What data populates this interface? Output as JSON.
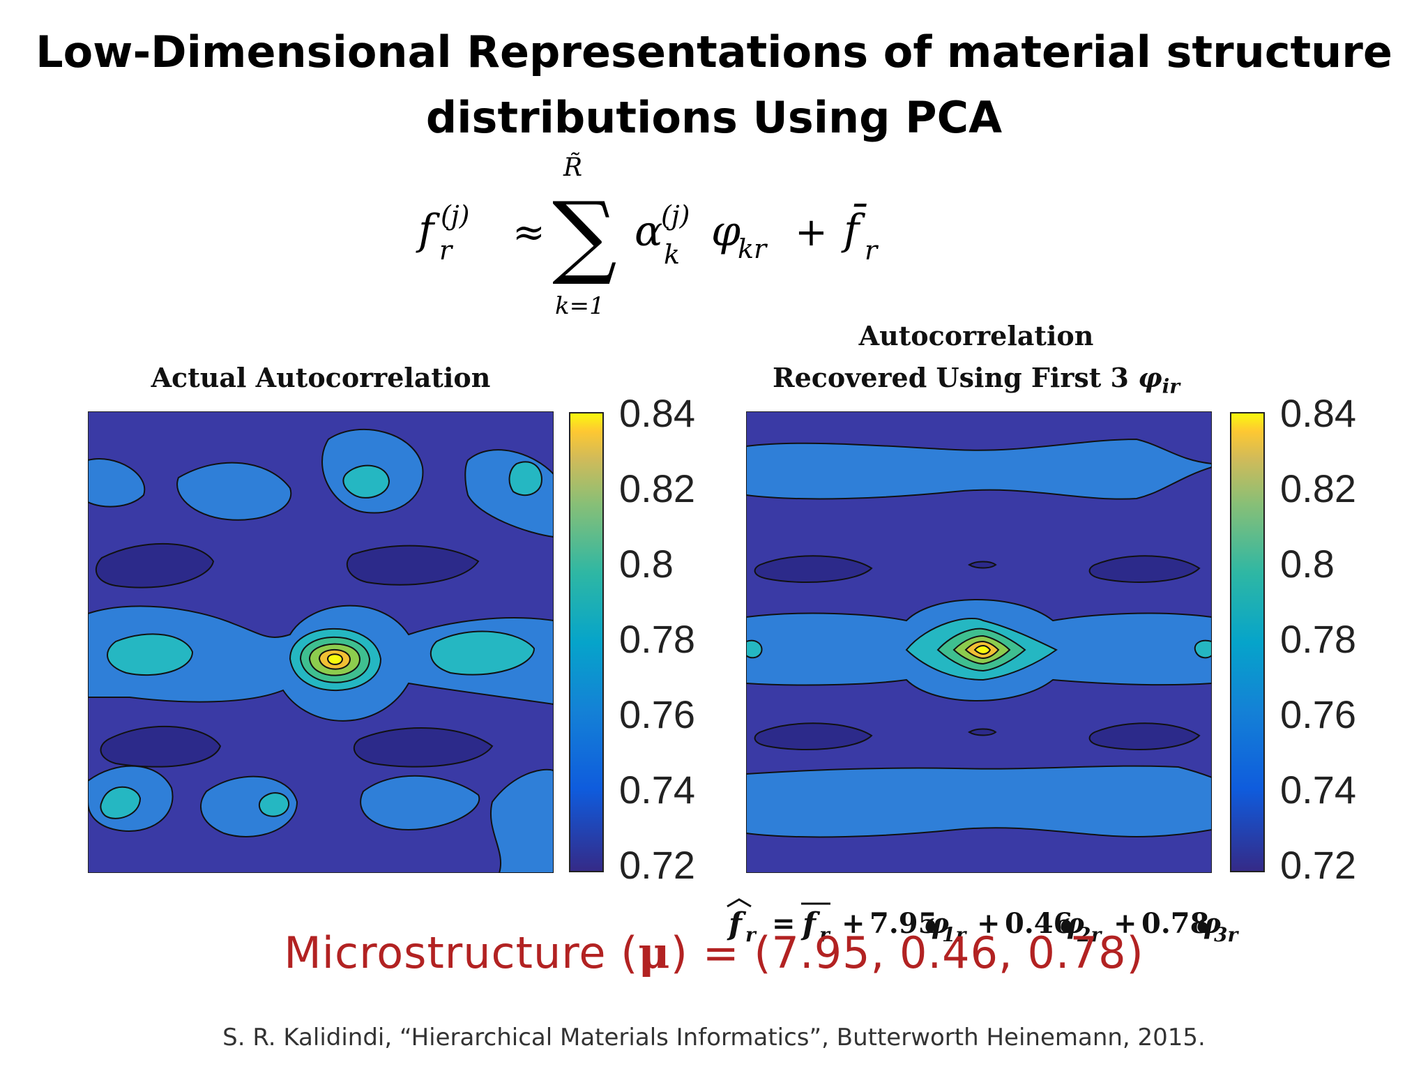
{
  "title": {
    "line1": "Low-Dimensional Representations of material structure",
    "line2": "distributions Using PCA"
  },
  "equation": {
    "lhs": "f",
    "lhs_sub": "r",
    "lhs_sup": "(j)",
    "approx": "≈",
    "sum_upper": "R̃",
    "sum_lower": "k=1",
    "alpha": "α",
    "alpha_sub": "k",
    "alpha_sup": "(j)",
    "phi": "φ",
    "phi_sub": "kr",
    "plus": "+",
    "fbar": "f̄",
    "fbar_sub": "r"
  },
  "left_panel": {
    "title": "Actual Autocorrelation",
    "colorbar_ticks": [
      "0.84",
      "0.82",
      "0.8",
      "0.78",
      "0.76",
      "0.74",
      "0.72"
    ]
  },
  "right_panel": {
    "title_line1": "Autocorrelation",
    "title_line2": "Recovered Using First 3 ",
    "title_phi": "φ",
    "title_phi_sub": "ir",
    "colorbar_ticks": [
      "0.84",
      "0.82",
      "0.8",
      "0.78",
      "0.76",
      "0.74",
      "0.72"
    ]
  },
  "recovery_equation": {
    "fhat": "f",
    "fhat_sub": "r",
    "eq": "=",
    "fbar": "f",
    "fbar_sub": "r",
    "terms": [
      {
        "coef": "7.95",
        "phi_sub": "1r"
      },
      {
        "coef": "0.46",
        "phi_sub": "2r"
      },
      {
        "coef": "0.78",
        "phi_sub": "3r"
      }
    ],
    "plus": "+",
    "phi": "φ"
  },
  "microstructure": {
    "prefix": "Microstructure (",
    "mu": "μ",
    "suffix": ") = (7.95, 0.46, 0.78)"
  },
  "citation": "S. R. Kalidindi, “Hierarchical Materials Informatics”, Butterworth Heinemann, 2015.",
  "colors": {
    "viridis_low": "#352a87",
    "viridis_mid": "#1ab3c1",
    "viridis_high": "#f9fb0e",
    "microstructure_text": "#b22222"
  }
}
